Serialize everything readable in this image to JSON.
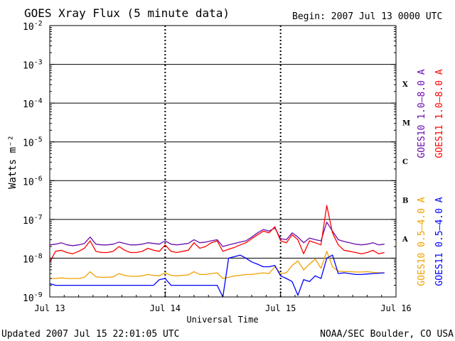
{
  "chart_data": {
    "type": "line",
    "title": "GOES Xray Flux (5 minute data)",
    "begin_label": "Begin:  2007 Jul 13 0000 UTC",
    "ylabel": "Watts m⁻²",
    "xlabel": "Universal Time",
    "y_scale": "log",
    "ylim": [
      1e-09,
      0.01
    ],
    "xlim": [
      0,
      3
    ],
    "x_ticks": [
      {
        "x": 0,
        "label": "Jul 13"
      },
      {
        "x": 1,
        "label": "Jul 14"
      },
      {
        "x": 2,
        "label": "Jul 15"
      },
      {
        "x": 3,
        "label": "Jul 16"
      }
    ],
    "y_ticks": [
      {
        "exp": -2,
        "base": "10",
        "sup": "-2"
      },
      {
        "exp": -3,
        "base": "10",
        "sup": "-3"
      },
      {
        "exp": -4,
        "base": "10",
        "sup": "-4"
      },
      {
        "exp": -5,
        "base": "10",
        "sup": "-5"
      },
      {
        "exp": -6,
        "base": "10",
        "sup": "-6"
      },
      {
        "exp": -7,
        "base": "10",
        "sup": "-7"
      },
      {
        "exp": -8,
        "base": "10",
        "sup": "-8"
      },
      {
        "exp": -9,
        "base": "10",
        "sup": "-9"
      }
    ],
    "flare_classes": [
      {
        "label": "X",
        "exp": -3.5
      },
      {
        "label": "M",
        "exp": -4.5
      },
      {
        "label": "C",
        "exp": -5.5
      },
      {
        "label": "B",
        "exp": -6.5
      },
      {
        "label": "A",
        "exp": -7.5
      }
    ],
    "grid": "horizontal at each decade from 1e-8 to 1e-2, dashed day markers",
    "series": [
      {
        "name": "GOES10 1.0–8.0 A",
        "color": "#6a0dad",
        "x": [
          0.0,
          0.05,
          0.1,
          0.15,
          0.2,
          0.25,
          0.3,
          0.35,
          0.4,
          0.45,
          0.5,
          0.55,
          0.6,
          0.65,
          0.7,
          0.75,
          0.8,
          0.85,
          0.9,
          0.95,
          1.0,
          1.05,
          1.1,
          1.15,
          1.2,
          1.25,
          1.3,
          1.35,
          1.4,
          1.45,
          1.5,
          1.55,
          1.6,
          1.65,
          1.7,
          1.75,
          1.8,
          1.85,
          1.9,
          1.95,
          2.0,
          2.05,
          2.1,
          2.15,
          2.2,
          2.25,
          2.3,
          2.35,
          2.4,
          2.45,
          2.5,
          2.55,
          2.6,
          2.65,
          2.7,
          2.75,
          2.8,
          2.85,
          2.9
        ],
        "y": [
          2.2e-08,
          2.3e-08,
          2.5e-08,
          2.2e-08,
          2.1e-08,
          2.2e-08,
          2.4e-08,
          3.5e-08,
          2.3e-08,
          2.2e-08,
          2.2e-08,
          2.3e-08,
          2.6e-08,
          2.4e-08,
          2.2e-08,
          2.2e-08,
          2.3e-08,
          2.5e-08,
          2.4e-08,
          2.3e-08,
          2.8e-08,
          2.3e-08,
          2.2e-08,
          2.3e-08,
          2.4e-08,
          3e-08,
          2.5e-08,
          2.6e-08,
          2.8e-08,
          3e-08,
          2e-08,
          2.2e-08,
          2.4e-08,
          2.6e-08,
          2.8e-08,
          3.5e-08,
          4.5e-08,
          5.5e-08,
          5e-08,
          6e-08,
          3.2e-08,
          3e-08,
          4.5e-08,
          3.5e-08,
          2.5e-08,
          3.3e-08,
          3e-08,
          2.8e-08,
          8.5e-08,
          5e-08,
          3e-08,
          2.7e-08,
          2.5e-08,
          2.3e-08,
          2.2e-08,
          2.3e-08,
          2.5e-08,
          2.2e-08,
          2.3e-08
        ]
      },
      {
        "name": "GOES11 1.0–8.0 A",
        "color": "#ff0000",
        "x": [
          0.0,
          0.05,
          0.1,
          0.15,
          0.2,
          0.25,
          0.3,
          0.35,
          0.4,
          0.45,
          0.5,
          0.55,
          0.6,
          0.65,
          0.7,
          0.75,
          0.8,
          0.85,
          0.9,
          0.95,
          1.0,
          1.05,
          1.1,
          1.15,
          1.2,
          1.25,
          1.3,
          1.35,
          1.4,
          1.45,
          1.5,
          1.55,
          1.6,
          1.65,
          1.7,
          1.75,
          1.8,
          1.85,
          1.9,
          1.95,
          2.0,
          2.05,
          2.1,
          2.15,
          2.2,
          2.25,
          2.3,
          2.35,
          2.4,
          2.45,
          2.5,
          2.55,
          2.6,
          2.65,
          2.7,
          2.75,
          2.8,
          2.85,
          2.9
        ],
        "y": [
          8e-09,
          1.5e-08,
          1.6e-08,
          1.4e-08,
          1.3e-08,
          1.5e-08,
          1.8e-08,
          2.8e-08,
          1.5e-08,
          1.4e-08,
          1.4e-08,
          1.5e-08,
          2e-08,
          1.6e-08,
          1.4e-08,
          1.4e-08,
          1.5e-08,
          1.8e-08,
          1.6e-08,
          1.5e-08,
          2.2e-08,
          1.5e-08,
          1.4e-08,
          1.5e-08,
          1.6e-08,
          2.5e-08,
          1.8e-08,
          2e-08,
          2.5e-08,
          2.8e-08,
          1.5e-08,
          1.7e-08,
          1.9e-08,
          2.2e-08,
          2.5e-08,
          3.2e-08,
          4e-08,
          5e-08,
          4.5e-08,
          6.5e-08,
          2.8e-08,
          2.5e-08,
          4e-08,
          3e-08,
          1.3e-08,
          2.8e-08,
          2.5e-08,
          2.2e-08,
          2.3e-07,
          4.5e-08,
          2.2e-08,
          1.6e-08,
          1.5e-08,
          1.4e-08,
          1.3e-08,
          1.4e-08,
          1.6e-08,
          1.3e-08,
          1.4e-08
        ]
      },
      {
        "name": "GOES10 0.5–4.0 A",
        "color": "#f0a000",
        "x": [
          0.0,
          0.05,
          0.1,
          0.15,
          0.2,
          0.25,
          0.3,
          0.35,
          0.4,
          0.45,
          0.5,
          0.55,
          0.6,
          0.65,
          0.7,
          0.75,
          0.8,
          0.85,
          0.9,
          0.95,
          1.0,
          1.05,
          1.1,
          1.15,
          1.2,
          1.25,
          1.3,
          1.35,
          1.4,
          1.45,
          1.5,
          1.55,
          1.6,
          1.65,
          1.7,
          1.75,
          1.8,
          1.85,
          1.9,
          1.95,
          2.0,
          2.05,
          2.1,
          2.15,
          2.2,
          2.25,
          2.3,
          2.35,
          2.4,
          2.45,
          2.5,
          2.55,
          2.6,
          2.65,
          2.7,
          2.75,
          2.8,
          2.85,
          2.9
        ],
        "y": [
          3e-09,
          3e-09,
          3.1e-09,
          3e-09,
          3e-09,
          3e-09,
          3.2e-09,
          4.5e-09,
          3.3e-09,
          3.2e-09,
          3.2e-09,
          3.3e-09,
          4e-09,
          3.6e-09,
          3.4e-09,
          3.4e-09,
          3.5e-09,
          3.8e-09,
          3.6e-09,
          3.5e-09,
          4.2e-09,
          3.6e-09,
          3.5e-09,
          3.6e-09,
          3.7e-09,
          4.5e-09,
          3.8e-09,
          3.8e-09,
          4e-09,
          4.2e-09,
          3e-09,
          3.2e-09,
          3.5e-09,
          3.6e-09,
          3.8e-09,
          3.8e-09,
          4e-09,
          4.2e-09,
          4e-09,
          6e-09,
          4e-09,
          4.2e-09,
          6.5e-09,
          8.5e-09,
          5e-09,
          7e-09,
          9.5e-09,
          5.5e-09,
          1.5e-08,
          6e-09,
          4.6e-09,
          4.5e-09,
          4.5e-09,
          4.4e-09,
          4.4e-09,
          4.5e-09,
          4.3e-09,
          4.2e-09,
          4.2e-09
        ]
      },
      {
        "name": "GOES11 0.5–4.0 A",
        "color": "#0000ff",
        "x": [
          0.0,
          0.05,
          0.1,
          0.15,
          0.2,
          0.25,
          0.3,
          0.35,
          0.4,
          0.45,
          0.5,
          0.55,
          0.6,
          0.65,
          0.7,
          0.75,
          0.8,
          0.85,
          0.9,
          0.95,
          1.0,
          1.05,
          1.1,
          1.15,
          1.2,
          1.25,
          1.3,
          1.35,
          1.4,
          1.45,
          1.5,
          1.55,
          1.6,
          1.65,
          1.7,
          1.75,
          1.8,
          1.85,
          1.9,
          1.95,
          2.0,
          2.05,
          2.1,
          2.15,
          2.2,
          2.25,
          2.3,
          2.35,
          2.4,
          2.45,
          2.5,
          2.55,
          2.6,
          2.65,
          2.7,
          2.75,
          2.8,
          2.85,
          2.9
        ],
        "y": [
          2.2e-09,
          2e-09,
          2e-09,
          2e-09,
          2e-09,
          2e-09,
          2e-09,
          2e-09,
          2e-09,
          2e-09,
          2e-09,
          2e-09,
          2e-09,
          2e-09,
          2e-09,
          2e-09,
          2e-09,
          2e-09,
          2e-09,
          2.8e-09,
          3e-09,
          2e-09,
          2e-09,
          2e-09,
          2e-09,
          2e-09,
          2e-09,
          2e-09,
          2e-09,
          2e-09,
          1e-09,
          1e-08,
          1.1e-08,
          1.2e-08,
          1e-08,
          8e-09,
          7e-09,
          6e-09,
          6e-09,
          6.5e-09,
          3.5e-09,
          3e-09,
          2.5e-09,
          1.1e-09,
          2.8e-09,
          2.5e-09,
          3.5e-09,
          3e-09,
          1e-08,
          1.2e-08,
          4e-09,
          4.2e-09,
          4e-09,
          3.8e-09,
          3.8e-09,
          3.9e-09,
          4e-09,
          4.1e-09,
          4.2e-09
        ]
      }
    ]
  },
  "footer": {
    "updated": "Updated 2007 Jul 15 22:01:05 UTC",
    "credit": "NOAA/SEC Boulder, CO USA"
  }
}
